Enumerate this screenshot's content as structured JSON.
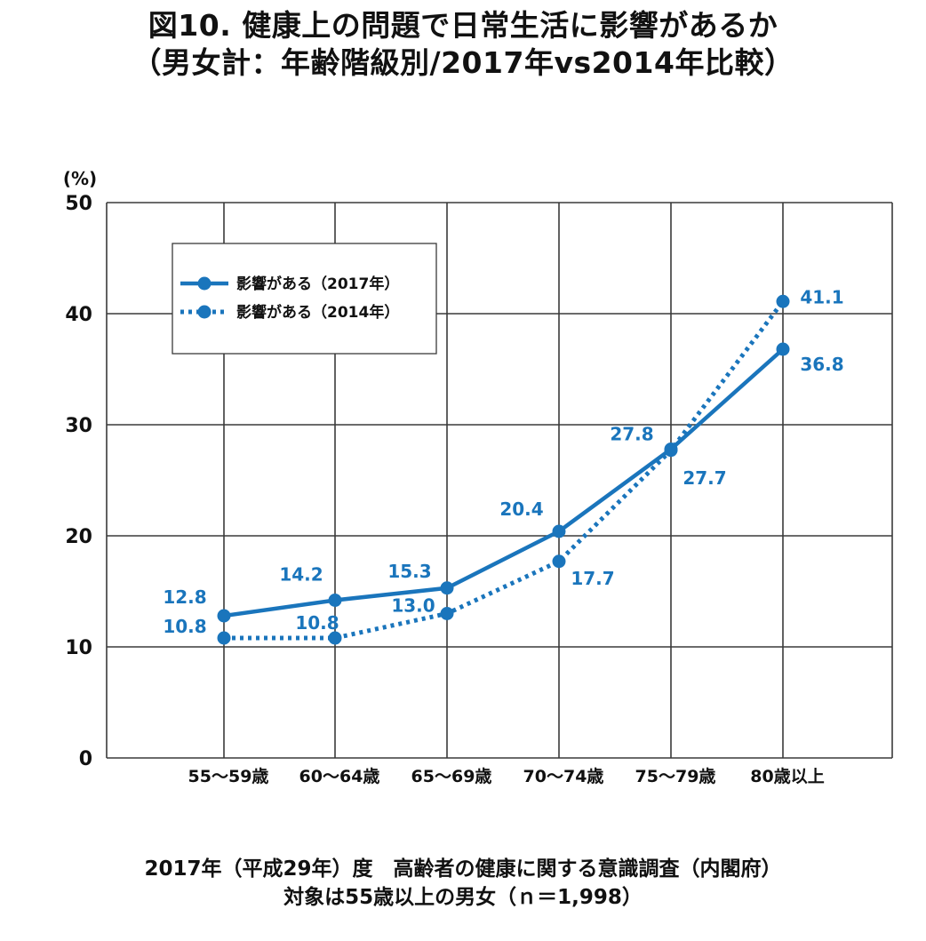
{
  "title": {
    "line1": "図10.  健康上の問題で日常生活に影響があるか",
    "line2": "（男女計：年齢階級別/2017年vs2014年比較）"
  },
  "chart_data": {
    "type": "line",
    "y_unit_label": "(%)",
    "ylim": [
      0,
      50
    ],
    "y_ticks": [
      0,
      10,
      20,
      30,
      40,
      50
    ],
    "grid": true,
    "legend_position": "top-left",
    "categories": [
      "55～59歳",
      "60～64歳",
      "65～69歳",
      "70～74歳",
      "75～79歳",
      "80歳以上"
    ],
    "series": [
      {
        "name": "影響がある（2017年）",
        "style": "solid",
        "color": "#1a75bc",
        "values": [
          12.8,
          14.2,
          15.3,
          20.4,
          27.8,
          36.8
        ],
        "labels": [
          "12.8",
          "14.2",
          "15.3",
          "20.4",
          "27.8",
          "36.8"
        ]
      },
      {
        "name": "影響がある（2014年）",
        "style": "dotted",
        "color": "#1a75bc",
        "values": [
          10.8,
          10.8,
          13.0,
          17.7,
          27.7,
          41.1
        ],
        "labels": [
          "10.8",
          "10.8",
          "13.0",
          "17.7",
          "27.7",
          "41.1"
        ]
      }
    ]
  },
  "footer": {
    "line1": "2017年（平成29年）度　高齢者の健康に関する意識調査（内閣府）",
    "line2": "対象は55歳以上の男女（ｎ＝1,998）"
  },
  "colors": {
    "series": "#1a75bc",
    "grid": "#3a3a3a",
    "axis_text": "#111111"
  }
}
